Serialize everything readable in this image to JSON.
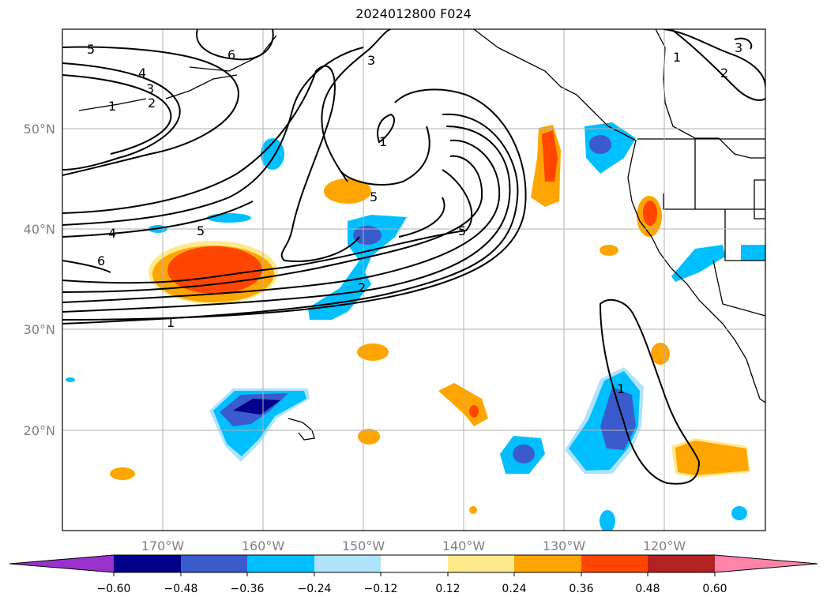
{
  "title": "2024012800 F024",
  "axes": {
    "lon_ticks": [
      "170°W",
      "160°W",
      "150°W",
      "140°W",
      "130°W",
      "120°W"
    ],
    "lat_ticks": [
      "50°N",
      "40°N",
      "30°N",
      "20°N"
    ]
  },
  "colorbar": {
    "tick_labels": [
      "−0.60",
      "−0.48",
      "−0.36",
      "−0.24",
      "−0.12",
      "0.12",
      "0.24",
      "0.36",
      "0.48",
      "0.60"
    ],
    "colors": [
      "#9932cc",
      "#00008b",
      "#3a5bcc",
      "#00bfff",
      "#aee3fb",
      "#ffffff",
      "#ffe98a",
      "#ffa500",
      "#ff4500",
      "#b22222",
      "#ff85a8"
    ]
  },
  "contour_labels": [
    "5",
    "4",
    "3",
    "2",
    "1",
    "6",
    "3",
    "1",
    "5",
    "4",
    "5",
    "6",
    "2",
    "1",
    "5",
    "1",
    "2",
    "3",
    "1"
  ]
}
